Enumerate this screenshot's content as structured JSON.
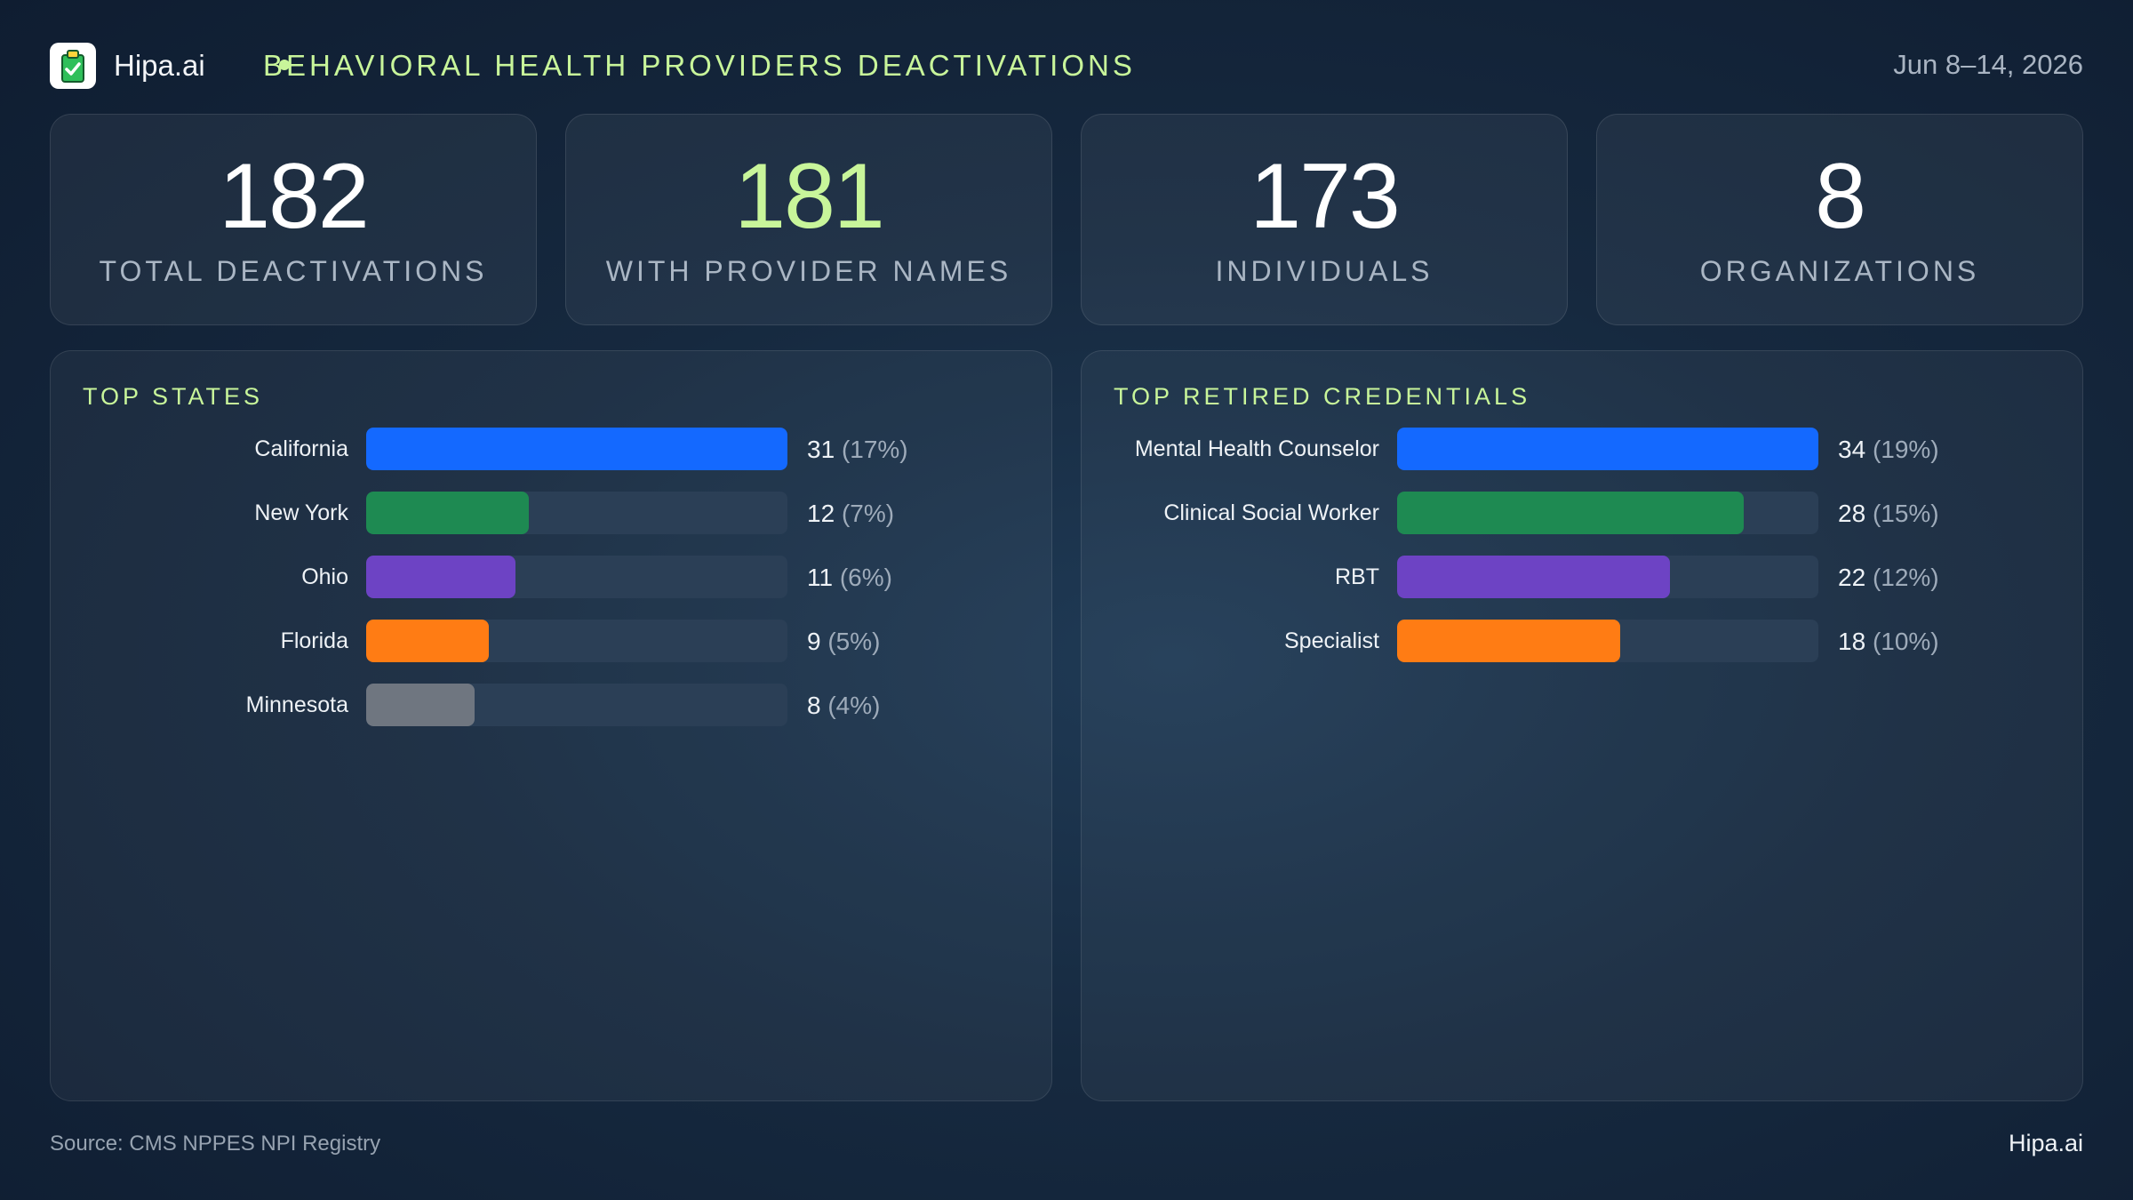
{
  "header": {
    "brand": "Hipa.ai",
    "title": "BEHAVIORAL HEALTH PROVIDERS DEACTIVATIONS",
    "date_range": "Jun 8–14, 2026",
    "logo_icon": "clipboard-check-icon"
  },
  "kpis": [
    {
      "value": "182",
      "label": "TOTAL DEACTIVATIONS",
      "accent": false
    },
    {
      "value": "181",
      "label": "WITH PROVIDER NAMES",
      "accent": true
    },
    {
      "value": "173",
      "label": "INDIVIDUALS",
      "accent": false
    },
    {
      "value": "8",
      "label": "ORGANIZATIONS",
      "accent": false
    }
  ],
  "chart_data": [
    {
      "type": "bar",
      "orientation": "horizontal",
      "title": "TOP STATES",
      "categories": [
        "California",
        "New York",
        "Ohio",
        "Florida",
        "Minnesota"
      ],
      "values": [
        31,
        12,
        11,
        9,
        8
      ],
      "percent_labels": [
        "(17%)",
        "(7%)",
        "(6%)",
        "(5%)",
        "(4%)"
      ],
      "colors": [
        "#1469ff",
        "#1e8a52",
        "#6d43c4",
        "#ff7c14",
        "#6f7680"
      ],
      "max": 31
    },
    {
      "type": "bar",
      "orientation": "horizontal",
      "title": "TOP RETIRED CREDENTIALS",
      "categories": [
        "Mental Health Counselor",
        "Clinical Social Worker",
        "RBT",
        "Specialist"
      ],
      "values": [
        34,
        28,
        22,
        18
      ],
      "percent_labels": [
        "(19%)",
        "(15%)",
        "(12%)",
        "(10%)"
      ],
      "colors": [
        "#1469ff",
        "#1e8a52",
        "#6d43c4",
        "#ff7c14"
      ],
      "max": 34
    }
  ],
  "footer": {
    "source": "Source: CMS NPPES NPI Registry",
    "brand": "Hipa.ai"
  }
}
